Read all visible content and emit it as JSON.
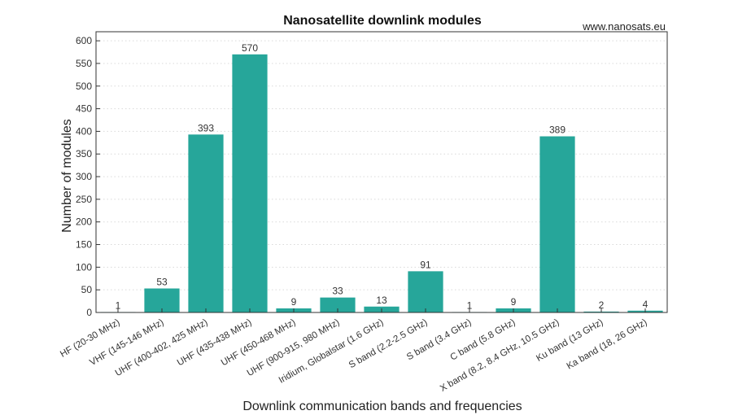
{
  "chart_data": {
    "type": "bar",
    "title": "Nanosatellite downlink modules",
    "watermark": "www.nanosats.eu",
    "xlabel": "Downlink communication bands and frequencies",
    "ylabel": "Number of modules",
    "ylim": [
      0,
      620
    ],
    "yticks": [
      0,
      50,
      100,
      150,
      200,
      250,
      300,
      350,
      400,
      450,
      500,
      550,
      600
    ],
    "grid": true,
    "categories": [
      "HF (20-30 MHz)",
      "VHF (145-146 MHz)",
      "UHF (400-402, 425 MHz)",
      "UHF (435-438 MHz)",
      "UHF (450-468 MHz)",
      "UHF (900-915, 980 MHz)",
      "Iridium, Globalstar (1.6 GHz)",
      "S band (2.2-2.5 GHz)",
      "S band (3.4 GHz)",
      "C band (5.8 GHz)",
      "X band (8.2, 8.4 GHz, 10.5 GHz)",
      "Ku band (13 GHz)",
      "Ka band (18, 26 GHz)"
    ],
    "values": [
      1,
      53,
      393,
      570,
      9,
      33,
      13,
      91,
      1,
      9,
      389,
      2,
      4
    ],
    "bar_color": "#26a69a"
  }
}
